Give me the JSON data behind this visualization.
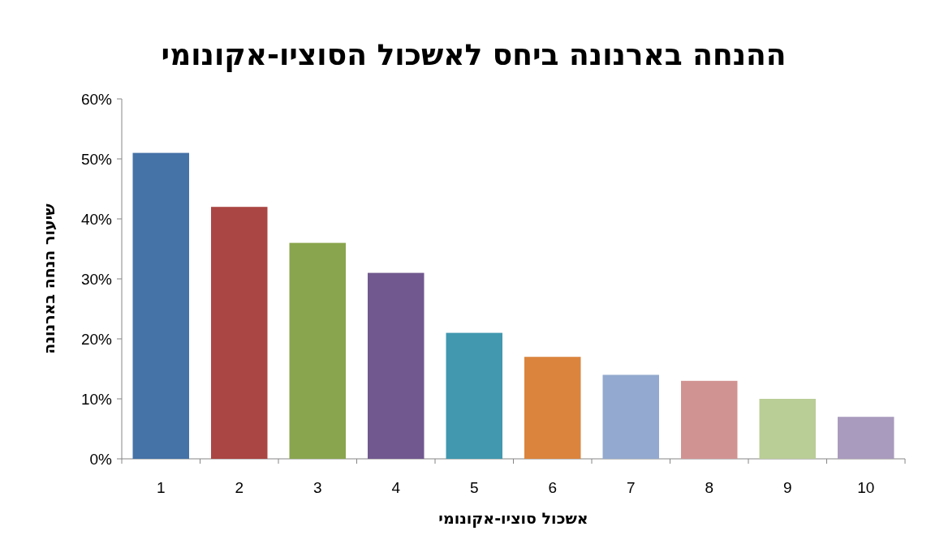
{
  "chart_data": {
    "type": "bar",
    "title": "ההנחה בארנונה ביחס לאשכול הסוציו-אקונומי",
    "xlabel": "אשכול סוציו-אקונומי",
    "ylabel": "שיעור הנחה בארנונה",
    "categories": [
      "1",
      "2",
      "3",
      "4",
      "5",
      "6",
      "7",
      "8",
      "9",
      "10"
    ],
    "values": [
      51,
      42,
      36,
      31,
      21,
      17,
      14,
      13,
      10,
      7
    ],
    "colors": [
      "#4572a7",
      "#aa4643",
      "#89a54e",
      "#71588f",
      "#4198af",
      "#db843d",
      "#93a9cf",
      "#d19392",
      "#b9cd96",
      "#a99bbd"
    ],
    "ylim": [
      0,
      60
    ],
    "yticks": [
      {
        "value": 0,
        "label": "0%"
      },
      {
        "value": 10,
        "label": "10%"
      },
      {
        "value": 20,
        "label": "20%"
      },
      {
        "value": 30,
        "label": "30%"
      },
      {
        "value": 40,
        "label": "40%"
      },
      {
        "value": 50,
        "label": "50%"
      },
      {
        "value": 60,
        "label": "60%"
      }
    ]
  }
}
